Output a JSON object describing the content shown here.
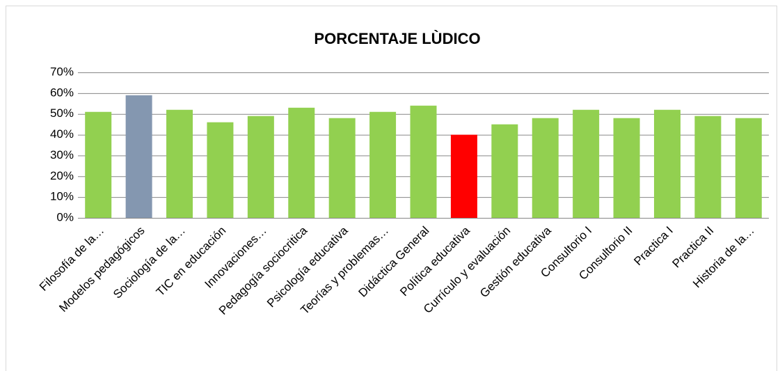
{
  "chart_data": {
    "type": "bar",
    "title": "PORCENTAJE LÙDICO",
    "categories": [
      "Filosofía de la…",
      "Modelos pedagógicos",
      "Sociología de la…",
      "TIC en educación",
      "Innovaciones…",
      "Pedagogía sociocritica",
      "Psicología educativa",
      "Teorías y problemas…",
      "Didáctica General",
      "Política educativa",
      "Currículo y evaluación",
      "Gestión educativa",
      "Consultorio I",
      "Consultorio II",
      "Practica I",
      "Practica II",
      "Historia de la…"
    ],
    "values": [
      51,
      59,
      52,
      46,
      49,
      53,
      48,
      51,
      54,
      40,
      45,
      48,
      52,
      48,
      52,
      49,
      48
    ],
    "colors": [
      "#92d050",
      "#8497b0",
      "#92d050",
      "#92d050",
      "#92d050",
      "#92d050",
      "#92d050",
      "#92d050",
      "#92d050",
      "#ff0000",
      "#92d050",
      "#92d050",
      "#92d050",
      "#92d050",
      "#92d050",
      "#92d050",
      "#92d050"
    ],
    "ylim": [
      0,
      70
    ],
    "yticks": [
      {
        "value": 0,
        "label": "0%"
      },
      {
        "value": 10,
        "label": "10%"
      },
      {
        "value": 20,
        "label": "20%"
      },
      {
        "value": 30,
        "label": "30%"
      },
      {
        "value": 40,
        "label": "40%"
      },
      {
        "value": 50,
        "label": "50%"
      },
      {
        "value": 60,
        "label": "60%"
      },
      {
        "value": 70,
        "label": "70%"
      }
    ],
    "grid": true
  }
}
